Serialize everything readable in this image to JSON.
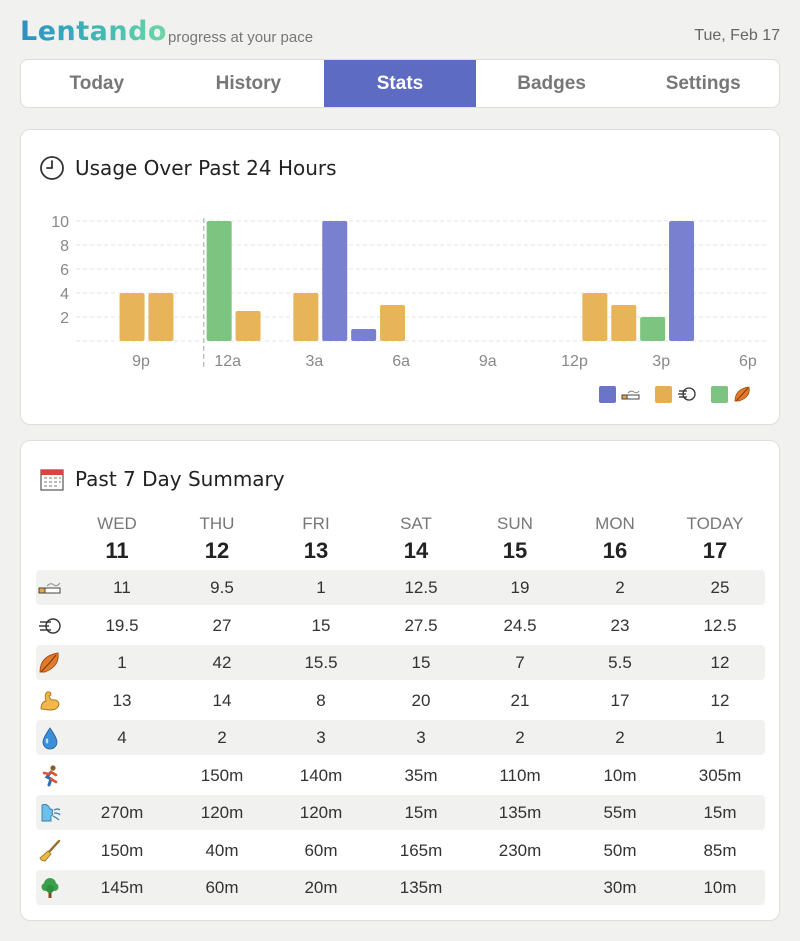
{
  "app": {
    "name": "Lentando",
    "tagline": "progress at your pace",
    "date": "Tue, Feb 17"
  },
  "tabs": [
    "Today",
    "History",
    "Stats",
    "Badges",
    "Settings"
  ],
  "active_tab": "Stats",
  "usage": {
    "title": "Usage Over Past 24 Hours",
    "title_icon": "clock-icon",
    "legend": [
      {
        "color": "#6a74c9",
        "icon": "cigarette-icon"
      },
      {
        "color": "#e8ac52",
        "icon": "vape-icon"
      },
      {
        "color": "#7cc47f",
        "icon": "leaf-icon"
      }
    ]
  },
  "chart_data": {
    "type": "bar",
    "title": "Usage Over Past 24 Hours",
    "xlabel": "",
    "ylabel": "",
    "ylim": [
      0,
      10
    ],
    "yticks": [
      2,
      4,
      6,
      8,
      10
    ],
    "x_tick_labels": [
      "9p",
      "12a",
      "3a",
      "6a",
      "9a",
      "12p",
      "3p",
      "6p"
    ],
    "midnight_marker": "12a",
    "series": [
      {
        "name": "cigarette",
        "color": "#7880cf",
        "points": [
          {
            "hour": 4.5,
            "value": 10
          },
          {
            "hour": 5.5,
            "value": 1
          },
          {
            "hour": 16.5,
            "value": 10
          }
        ]
      },
      {
        "name": "vape",
        "color": "#e8b45a",
        "points": [
          {
            "hour": -2.5,
            "value": 4
          },
          {
            "hour": -1.5,
            "value": 4
          },
          {
            "hour": 1.5,
            "value": 2.5
          },
          {
            "hour": 3.5,
            "value": 4
          },
          {
            "hour": 6.5,
            "value": 3
          },
          {
            "hour": 13.5,
            "value": 4
          },
          {
            "hour": 14.5,
            "value": 3
          }
        ]
      },
      {
        "name": "cannabis",
        "color": "#7cc47f",
        "points": [
          {
            "hour": 0.5,
            "value": 10
          },
          {
            "hour": 15.5,
            "value": 2
          }
        ]
      }
    ]
  },
  "summary": {
    "title": "Past 7 Day Summary",
    "title_icon": "calendar-icon",
    "days": [
      {
        "name": "WED",
        "num": "11"
      },
      {
        "name": "THU",
        "num": "12"
      },
      {
        "name": "FRI",
        "num": "13"
      },
      {
        "name": "SAT",
        "num": "14"
      },
      {
        "name": "SUN",
        "num": "15"
      },
      {
        "name": "MON",
        "num": "16"
      },
      {
        "name": "TODAY",
        "num": "17"
      }
    ],
    "rows": [
      {
        "icon": "cigarette-icon",
        "values": [
          "11",
          "9.5",
          "1",
          "12.5",
          "19",
          "2",
          "25"
        ]
      },
      {
        "icon": "vape-icon",
        "values": [
          "19.5",
          "27",
          "15",
          "27.5",
          "24.5",
          "23",
          "12.5"
        ]
      },
      {
        "icon": "leaf-icon",
        "values": [
          "1",
          "42",
          "15.5",
          "15",
          "7",
          "5.5",
          "12"
        ]
      },
      {
        "icon": "muscle-icon",
        "values": [
          "13",
          "14",
          "8",
          "20",
          "21",
          "17",
          "12"
        ]
      },
      {
        "icon": "water-drop-icon",
        "values": [
          "4",
          "2",
          "3",
          "3",
          "2",
          "2",
          "1"
        ]
      },
      {
        "icon": "running-icon",
        "values": [
          "",
          "150m",
          "140m",
          "35m",
          "110m",
          "10m",
          "305m"
        ]
      },
      {
        "icon": "breathing-icon",
        "values": [
          "270m",
          "120m",
          "120m",
          "15m",
          "135m",
          "55m",
          "15m"
        ]
      },
      {
        "icon": "broom-icon",
        "values": [
          "150m",
          "40m",
          "60m",
          "165m",
          "230m",
          "50m",
          "85m"
        ]
      },
      {
        "icon": "tree-icon",
        "values": [
          "145m",
          "60m",
          "20m",
          "135m",
          "",
          "30m",
          "10m"
        ]
      }
    ]
  }
}
